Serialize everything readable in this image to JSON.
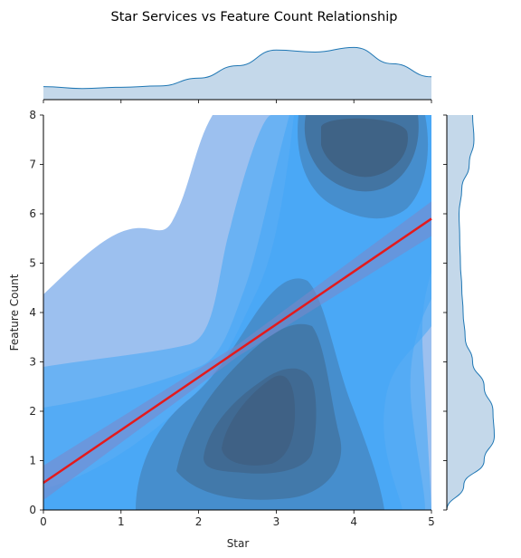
{
  "chart_data": {
    "type": "scatter",
    "subtype": "jointplot-kde-with-regression",
    "title": "Star Services vs Feature Count Relationship",
    "xlabel": "Star",
    "ylabel": "Feature Count",
    "xlim": [
      0,
      5
    ],
    "ylim": [
      0,
      8
    ],
    "xticks": [
      "0",
      "1",
      "2",
      "3",
      "4",
      "5"
    ],
    "yticks": [
      "0",
      "1",
      "2",
      "3",
      "4",
      "5",
      "6",
      "7",
      "8"
    ],
    "grid": false,
    "regression": {
      "color": "#e41a1c",
      "x": [
        0,
        5
      ],
      "y": [
        0.55,
        5.9
      ]
    },
    "kde_peaks": [
      {
        "x": 2.9,
        "y": 1.6
      },
      {
        "x": 3.9,
        "y": 7.4
      }
    ],
    "marginal_x_density": {
      "x": [
        0,
        0.5,
        1.0,
        1.5,
        2.0,
        2.5,
        3.0,
        3.5,
        4.0,
        4.5,
        5.0
      ],
      "density": [
        0.2,
        0.17,
        0.19,
        0.21,
        0.33,
        0.52,
        0.76,
        0.73,
        0.8,
        0.55,
        0.35
      ]
    },
    "marginal_y_density": {
      "y": [
        0,
        0.5,
        1.0,
        1.5,
        2.0,
        2.5,
        3.0,
        3.5,
        4.0,
        4.5,
        5.0,
        5.5,
        6.0,
        6.5,
        7.0,
        7.5,
        8.0
      ],
      "density": [
        0.0,
        0.25,
        0.55,
        0.7,
        0.68,
        0.55,
        0.38,
        0.27,
        0.24,
        0.22,
        0.2,
        0.19,
        0.18,
        0.22,
        0.33,
        0.4,
        0.38
      ]
    },
    "colors": {
      "kde_light": "#9cc0ef",
      "kde_mid": "#42a5f5",
      "kde_dark": "#3f5f80",
      "marginal_fill": "#c4d8ea",
      "marginal_line": "#1f77b4",
      "band": "#7b86c9"
    }
  }
}
